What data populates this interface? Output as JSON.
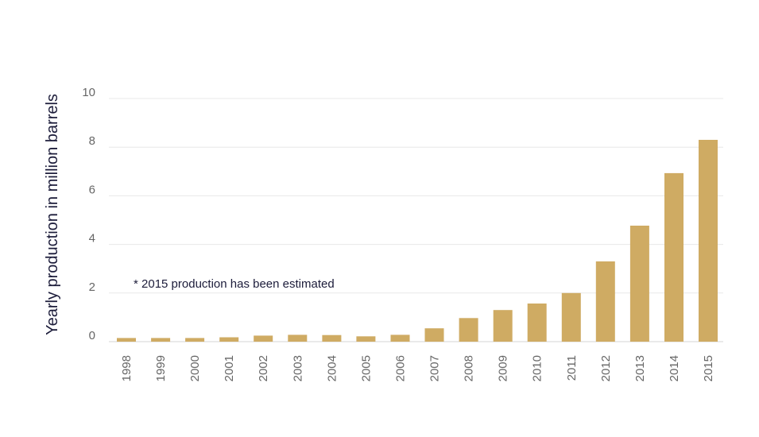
{
  "chart_data": {
    "type": "bar",
    "ylabel": "Yearly production in million barrels",
    "xlabel": "",
    "ylim": [
      0,
      10
    ],
    "yticks": [
      0,
      2,
      4,
      6,
      8,
      10
    ],
    "grid": true,
    "annotation": "* 2015 production has been estimated",
    "categories": [
      "1998",
      "1999",
      "2000",
      "2001",
      "2002",
      "2003",
      "2004",
      "2005",
      "2006",
      "2007",
      "2008",
      "2009",
      "2010",
      "2011",
      "2012",
      "2013",
      "2014",
      "2015"
    ],
    "values": [
      0.15,
      0.15,
      0.15,
      0.18,
      0.25,
      0.28,
      0.27,
      0.22,
      0.28,
      0.55,
      0.97,
      1.3,
      1.57,
      2.0,
      3.3,
      4.77,
      6.93,
      8.3
    ],
    "bar_color": "#cfab63"
  }
}
